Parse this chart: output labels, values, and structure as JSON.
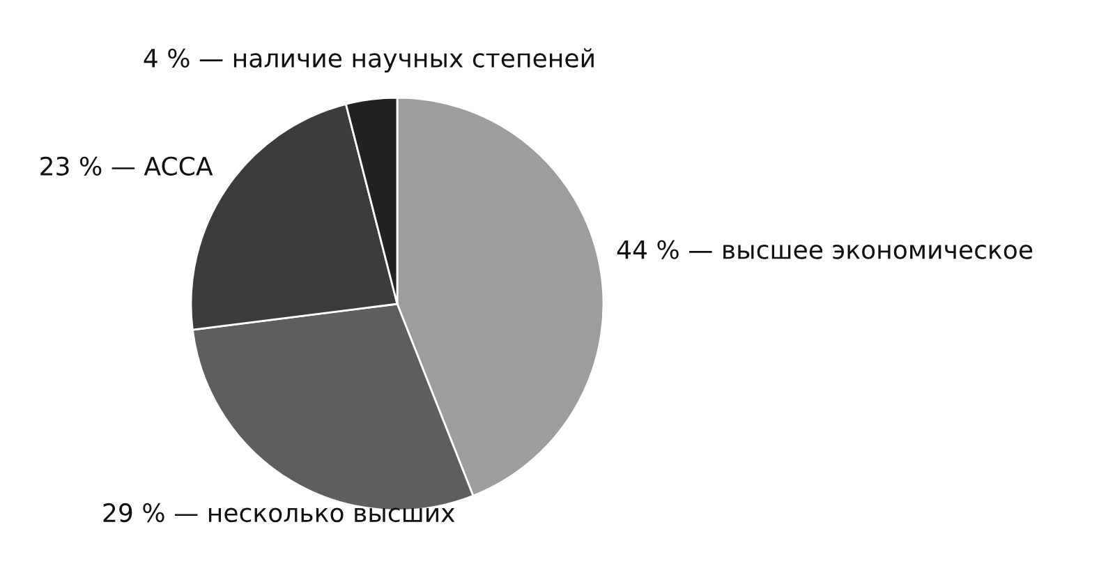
{
  "chart_data": {
    "type": "pie",
    "categories": [
      "44 % — высшее экономическое",
      "29 % — несколько высших",
      "23 % — ACCA",
      "4 % — наличие научных степеней"
    ],
    "values": [
      44,
      29,
      23,
      4
    ],
    "colors": [
      "#9d9d9d",
      "#5e5e5e",
      "#3c3c3c",
      "#222222"
    ]
  }
}
